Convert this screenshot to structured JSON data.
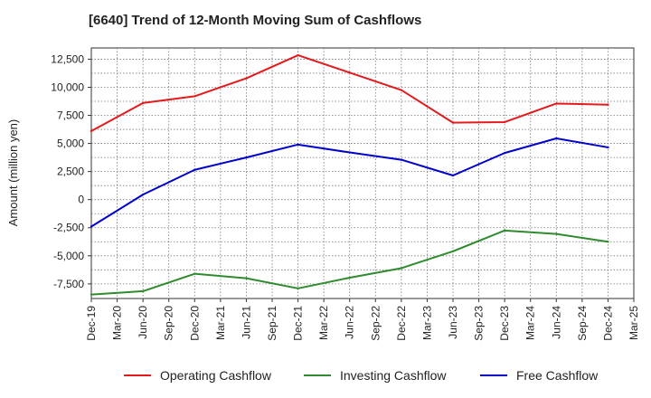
{
  "chart_data": {
    "type": "line",
    "title": "[6640]  Trend of 12-Month Moving Sum of Cashflows",
    "xlabel": "",
    "ylabel": "Amount (million yen)",
    "ylim": [
      -8800,
      13500
    ],
    "yticks": [
      12500,
      10000,
      7500,
      5000,
      2500,
      0,
      -2500,
      -5000,
      -7500
    ],
    "ytick_labels": [
      "12,500",
      "10,000",
      "7,500",
      "5,000",
      "2,500",
      "0",
      "-2,500",
      "-5,000",
      "-7,500"
    ],
    "x_tick_labels": [
      "Dec-19",
      "Mar-20",
      "Jun-20",
      "Sep-20",
      "Dec-20",
      "Mar-21",
      "Jun-21",
      "Sep-21",
      "Dec-21",
      "Mar-22",
      "Jun-22",
      "Sep-22",
      "Dec-22",
      "Mar-23",
      "Jun-23",
      "Sep-23",
      "Dec-23",
      "Mar-24",
      "Jun-24",
      "Sep-24",
      "Dec-24",
      "Mar-25"
    ],
    "categories": [
      "Dec-19",
      "Jun-20",
      "Dec-20",
      "Jun-21",
      "Dec-21",
      "Jun-22",
      "Dec-22",
      "Jun-23",
      "Dec-23",
      "Jun-24",
      "Dec-24"
    ],
    "grid": true,
    "legend_position": "bottom",
    "series": [
      {
        "name": "Operating Cashflow",
        "color": "#e41a1c",
        "values": [
          6100,
          8600,
          9200,
          10800,
          12850,
          11300,
          9750,
          6850,
          6900,
          8550,
          8450
        ]
      },
      {
        "name": "Investing Cashflow",
        "color": "#2e8b2e",
        "values": [
          -8450,
          -8150,
          -6600,
          -7000,
          -7900,
          -6950,
          -6100,
          -4600,
          -2750,
          -3050,
          -3750
        ]
      },
      {
        "name": "Free Cashflow",
        "color": "#0000cc",
        "values": [
          -2400,
          450,
          2650,
          3750,
          4900,
          4200,
          3550,
          2150,
          4150,
          5450,
          4650
        ]
      }
    ]
  }
}
